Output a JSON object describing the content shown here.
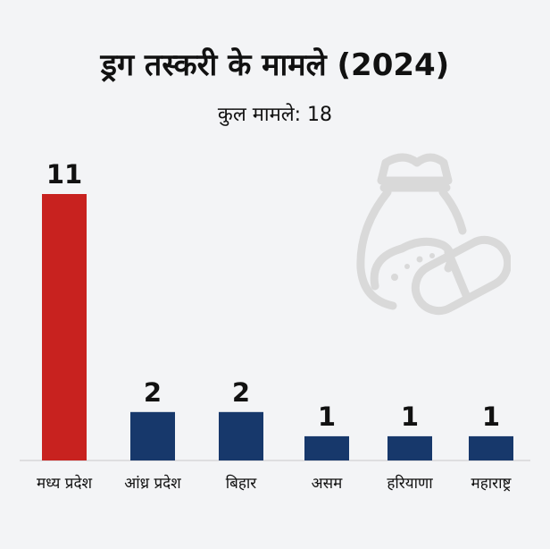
{
  "chart_data": {
    "type": "bar",
    "title": "ड्रग तस्करी के मामले (2024)",
    "subtitle": "कुल मामले: 18",
    "categories": [
      "मध्य प्रदेश",
      "आंध्र प्रदेश",
      "बिहार",
      "असम",
      "हरियाणा",
      "महाराष्ट्र"
    ],
    "values": [
      11,
      2,
      2,
      1,
      1,
      1
    ],
    "colors": [
      "#c8221f",
      "#17386b",
      "#17386b",
      "#17386b",
      "#17386b",
      "#17386b"
    ],
    "ylim": [
      0,
      11
    ],
    "grid": false,
    "xlabel": "",
    "ylabel": ""
  },
  "decoration": {
    "icon": "drug-sack-and-capsule-icon",
    "color": "#d9d9d9"
  }
}
